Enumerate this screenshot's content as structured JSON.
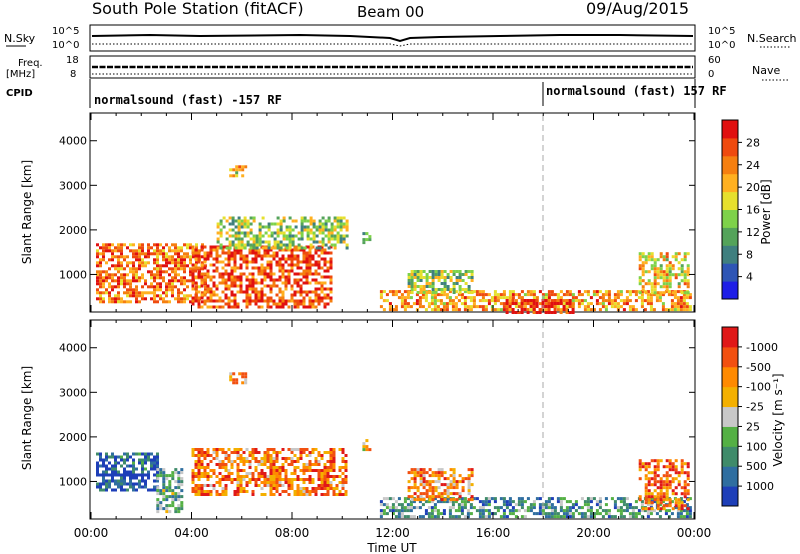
{
  "header": {
    "title": "South Pole Station (fitACF)",
    "beam": "Beam 00",
    "date": "09/Aug/2015"
  },
  "top_panels": {
    "nsky_label": "N.Sky",
    "nsky_ticks": [
      "10^5",
      "10^0"
    ],
    "nsearch_label": "N.Search",
    "nsearch_ticks": [
      "10^5",
      "10^0"
    ],
    "freq_label": "Freq.",
    "freq_unit": "[MHz]",
    "freq_ticks": [
      "18",
      "8"
    ],
    "nave_label": "Nave",
    "nave_ticks": [
      "60",
      "0"
    ],
    "cpid_label": "CPID",
    "cpid_segments": [
      {
        "label": "normalsound (fast) -157 RF",
        "start_hour": 0
      },
      {
        "label": "normalsound (fast) 157 RF",
        "start_hour": 18
      }
    ]
  },
  "xaxis": {
    "label": "Time UT",
    "ticks": [
      "00:00",
      "04:00",
      "08:00",
      "12:00",
      "16:00",
      "20:00",
      "00:00"
    ]
  },
  "chart_data": [
    {
      "type": "heatmap",
      "title": "",
      "xlabel": "Time UT",
      "ylabel": "Slant Range [km]",
      "xlim": [
        0,
        24
      ],
      "ylim": [
        180,
        4600
      ],
      "yticks": [
        "1000",
        "2000",
        "3000",
        "4000"
      ],
      "colorbar_label": "Power [dB]",
      "colorbar_ticks": [
        "4",
        "8",
        "12",
        "16",
        "20",
        "24",
        "28"
      ],
      "colorbar_colors": [
        "#1e1ee6",
        "#2e55b5",
        "#3f7f7f",
        "#54a35a",
        "#7ed24a",
        "#e6e02d",
        "#ffb020",
        "#f57f10",
        "#ef4a0e",
        "#e01010"
      ],
      "clusters": [
        {
          "t0": 0.2,
          "t1": 4.6,
          "r0": 400,
          "r1": 1700,
          "level": 0.78
        },
        {
          "t0": 4.0,
          "t1": 9.6,
          "r0": 300,
          "r1": 1650,
          "level": 0.85
        },
        {
          "t0": 5.0,
          "t1": 10.2,
          "r0": 1600,
          "r1": 2300,
          "level": 0.45
        },
        {
          "t0": 5.5,
          "t1": 6.2,
          "r0": 3200,
          "r1": 3450,
          "level": 0.6
        },
        {
          "t0": 10.8,
          "t1": 11.1,
          "r0": 1700,
          "r1": 1950,
          "level": 0.4
        },
        {
          "t0": 11.5,
          "t1": 23.8,
          "r0": 180,
          "r1": 650,
          "level": 0.7
        },
        {
          "t0": 16.5,
          "t1": 19.2,
          "r0": 180,
          "r1": 450,
          "level": 0.92
        },
        {
          "t0": 12.6,
          "t1": 15.2,
          "r0": 600,
          "r1": 1100,
          "level": 0.45
        },
        {
          "t0": 21.8,
          "t1": 23.8,
          "r0": 600,
          "r1": 1500,
          "level": 0.6
        }
      ]
    },
    {
      "type": "heatmap",
      "title": "",
      "xlabel": "Time UT",
      "ylabel": "Slant Range [km]",
      "xlim": [
        0,
        24
      ],
      "ylim": [
        180,
        4600
      ],
      "yticks": [
        "1000",
        "2000",
        "3000",
        "4000"
      ],
      "colorbar_label": "Velocity [m s⁻¹]",
      "colorbar_ticks": [
        "1000",
        "500",
        "100",
        "25",
        "-25",
        "-100",
        "-500",
        "-1000"
      ],
      "colorbar_colors": [
        "#1e3fb8",
        "#2f6ea0",
        "#3f8b6a",
        "#54b044",
        "#c8c8c8",
        "#f4b000",
        "#ff8a00",
        "#f25010",
        "#e01818"
      ],
      "clusters": [
        {
          "t0": 0.2,
          "t1": 2.6,
          "r0": 800,
          "r1": 1650,
          "level": 0.12
        },
        {
          "t0": 2.6,
          "t1": 3.6,
          "r0": 300,
          "r1": 1300,
          "level": 0.35
        },
        {
          "t0": 4.0,
          "t1": 10.2,
          "r0": 700,
          "r1": 1750,
          "level": 0.75
        },
        {
          "t0": 5.5,
          "t1": 6.2,
          "r0": 3200,
          "r1": 3450,
          "level": 0.7
        },
        {
          "t0": 10.8,
          "t1": 11.1,
          "r0": 1700,
          "r1": 1950,
          "level": 0.65
        },
        {
          "t0": 11.5,
          "t1": 23.8,
          "r0": 180,
          "r1": 650,
          "level": 0.3
        },
        {
          "t0": 12.6,
          "t1": 15.2,
          "r0": 600,
          "r1": 1300,
          "level": 0.7
        },
        {
          "t0": 21.8,
          "t1": 23.8,
          "r0": 400,
          "r1": 1500,
          "level": 0.8
        }
      ]
    }
  ]
}
